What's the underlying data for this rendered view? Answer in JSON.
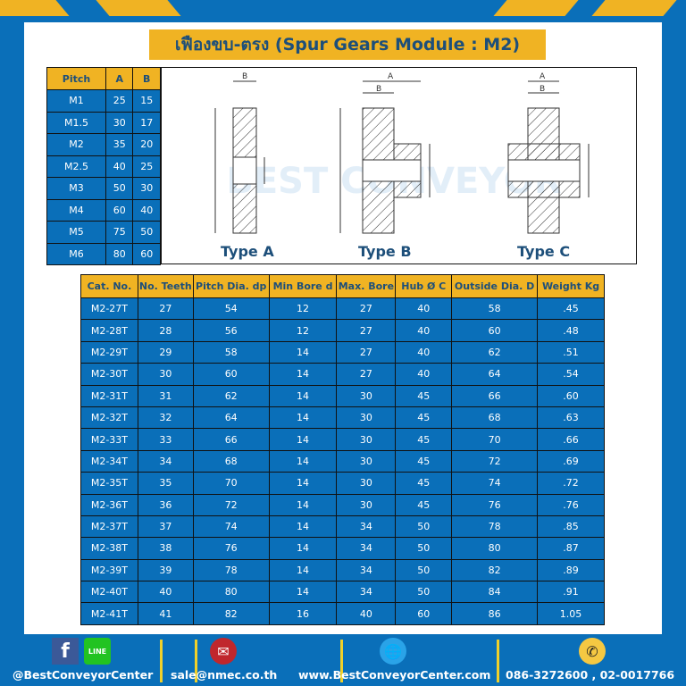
{
  "title": "เฟืองขบ-ตรง (Spur Gears Module : M2)",
  "pitch_table": {
    "headers": [
      "Pitch",
      "A",
      "B"
    ],
    "rows": [
      [
        "M1",
        "25",
        "15"
      ],
      [
        "M1.5",
        "30",
        "17"
      ],
      [
        "M2",
        "35",
        "20"
      ],
      [
        "M2.5",
        "40",
        "25"
      ],
      [
        "M3",
        "50",
        "30"
      ],
      [
        "M4",
        "60",
        "40"
      ],
      [
        "M5",
        "75",
        "50"
      ],
      [
        "M6",
        "80",
        "60"
      ]
    ]
  },
  "diagrams": {
    "type_a": "Type A",
    "type_b": "Type B",
    "type_c": "Type C",
    "watermark": "BEST CONVEYOR CENTER"
  },
  "main_table": {
    "headers": [
      "Cat. No.",
      "No. Teeth",
      "Pitch Dia. dp",
      "Min Bore d",
      "Max. Bore",
      "Hub Ø C",
      "Outside Dia. D",
      "Weight Kg"
    ],
    "rows": [
      [
        "M2-27T",
        "27",
        "54",
        "12",
        "27",
        "40",
        "58",
        ".45"
      ],
      [
        "M2-28T",
        "28",
        "56",
        "12",
        "27",
        "40",
        "60",
        ".48"
      ],
      [
        "M2-29T",
        "29",
        "58",
        "14",
        "27",
        "40",
        "62",
        ".51"
      ],
      [
        "M2-30T",
        "30",
        "60",
        "14",
        "27",
        "40",
        "64",
        ".54"
      ],
      [
        "M2-31T",
        "31",
        "62",
        "14",
        "30",
        "45",
        "66",
        ".60"
      ],
      [
        "M2-32T",
        "32",
        "64",
        "14",
        "30",
        "45",
        "68",
        ".63"
      ],
      [
        "M2-33T",
        "33",
        "66",
        "14",
        "30",
        "45",
        "70",
        ".66"
      ],
      [
        "M2-34T",
        "34",
        "68",
        "14",
        "30",
        "45",
        "72",
        ".69"
      ],
      [
        "M2-35T",
        "35",
        "70",
        "14",
        "30",
        "45",
        "74",
        ".72"
      ],
      [
        "M2-36T",
        "36",
        "72",
        "14",
        "30",
        "45",
        "76",
        ".76"
      ],
      [
        "M2-37T",
        "37",
        "74",
        "14",
        "34",
        "50",
        "78",
        ".85"
      ],
      [
        "M2-38T",
        "38",
        "76",
        "14",
        "34",
        "50",
        "80",
        ".87"
      ],
      [
        "M2-39T",
        "39",
        "78",
        "14",
        "34",
        "50",
        "82",
        ".89"
      ],
      [
        "M2-40T",
        "40",
        "80",
        "14",
        "34",
        "50",
        "84",
        ".91"
      ],
      [
        "M2-41T",
        "41",
        "82",
        "16",
        "40",
        "60",
        "86",
        "1.05"
      ]
    ]
  },
  "footer": {
    "facebook": "@BestConveyorCenter",
    "line_icon": "LINE",
    "email": "sale@nmec.co.th",
    "website": "www.BestConveyorCenter.com",
    "phone": "086-3272600 , 02-0017766"
  },
  "colors": {
    "blue": "#0a6fb9",
    "yellow": "#f0b323",
    "title_text": "#1d4f7a"
  }
}
